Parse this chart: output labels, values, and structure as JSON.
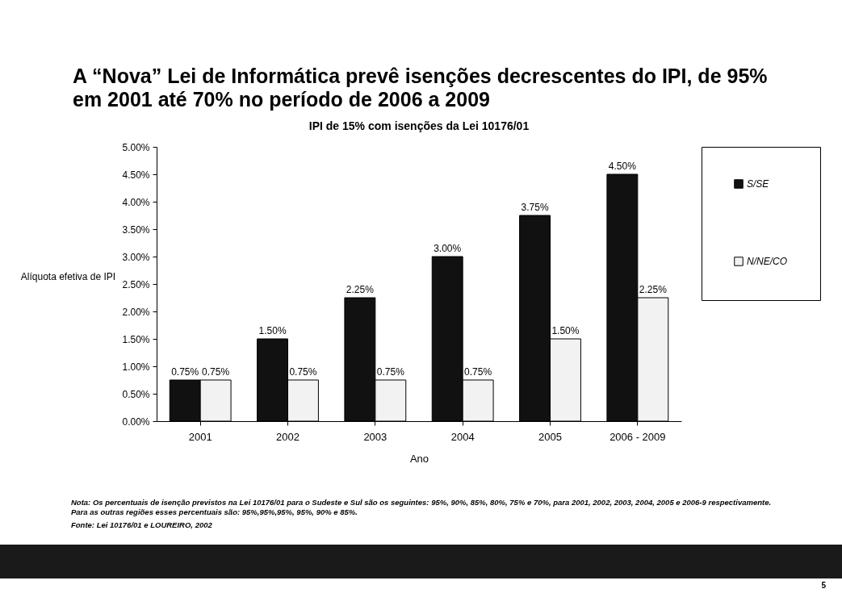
{
  "chart_data": {
    "type": "bar",
    "title": "A “Nova” Lei de Informática prevê isenções decrescentes do IPI, de 95% em 2001 até 70% no período de 2006 a 2009",
    "subtitle": "IPI de 15% com isenções da Lei 10176/01",
    "xlabel": "Ano",
    "ylabel": "Alíquota efetiva de IPI",
    "categories": [
      "2001",
      "2002",
      "2003",
      "2004",
      "2005",
      "2006 - 2009"
    ],
    "series": [
      {
        "name": "S/SE",
        "color": "#111111",
        "values": [
          0.75,
          1.5,
          2.25,
          3.0,
          3.75,
          4.5
        ],
        "value_labels": [
          "0.75%",
          "1.50%",
          "2.25%",
          "3.00%",
          "3.75%",
          "4.50%"
        ]
      },
      {
        "name": "N/NE/CO",
        "color": "#f2f2f2",
        "values": [
          0.75,
          0.75,
          0.75,
          0.75,
          1.5,
          2.25
        ],
        "value_labels": [
          "0.75%",
          "0.75%",
          "0.75%",
          "0.75%",
          "1.50%",
          "2.25%"
        ]
      }
    ],
    "ylim": [
      0,
      5
    ],
    "yticks": [
      {
        "value": 0,
        "label": "0.00%"
      },
      {
        "value": 0.5,
        "label": "0.50%"
      },
      {
        "value": 1,
        "label": "1.00%"
      },
      {
        "value": 1.5,
        "label": "1.50%"
      },
      {
        "value": 2,
        "label": "2.00%"
      },
      {
        "value": 2.5,
        "label": "2.50%"
      },
      {
        "value": 3,
        "label": "3.00%"
      },
      {
        "value": 3.5,
        "label": "3.50%"
      },
      {
        "value": 4,
        "label": "4.00%"
      },
      {
        "value": 4.5,
        "label": "4.50%"
      },
      {
        "value": 5,
        "label": "5.00%"
      }
    ],
    "grid": false,
    "legend": "right",
    "annotations": [
      "Nota:  Os percentuais de isenção previstos na Lei 10176/01 para o Sudeste e Sul são os seguintes: 95%, 90%, 85%, 80%, 75% e 70%, para 2001, 2002, 2003, 2004, 2005 e 2006-9 respectivamente. Para as outras regiões esses percentuais são: 95%,95%,95%, 95%, 90% e 85%.",
      "Fonte:  Lei 10176/01 e LOUREIRO, 2002",
      "5"
    ]
  }
}
